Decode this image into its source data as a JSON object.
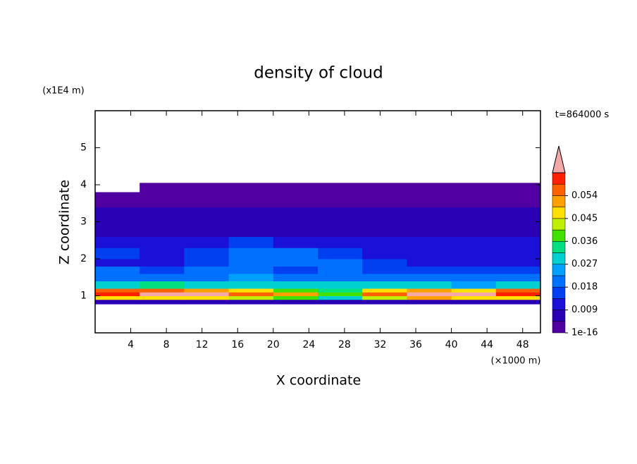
{
  "chart_data": {
    "type": "contour",
    "title": "density of cloud",
    "xlabel": "X coordinate",
    "ylabel": "Z coordinate",
    "x_unit": "(×1000 m)",
    "y_unit": "(x1E4 m)",
    "annotation": "t=864000 s",
    "xlim": [
      0,
      50
    ],
    "xticks": [
      4,
      8,
      12,
      16,
      20,
      24,
      28,
      32,
      36,
      40,
      44,
      48
    ],
    "ylim": [
      0,
      6
    ],
    "yticks": [
      1,
      2,
      3,
      4,
      5
    ],
    "x_edges": [
      0,
      5,
      10,
      15,
      20,
      25,
      30,
      35,
      40,
      45,
      50
    ],
    "y_edges": [
      0.78,
      0.9,
      1.0,
      1.1,
      1.2,
      1.4,
      1.6,
      1.8,
      2.0,
      2.3,
      2.6,
      3.0,
      3.4,
      3.8,
      4.05
    ],
    "z": [
      [
        0.008,
        0.008,
        0.008,
        0.008,
        0.008,
        0.007,
        0.008,
        0.008,
        0.008,
        0.008
      ],
      [
        0.045,
        0.048,
        0.046,
        0.044,
        0.04,
        0.03,
        0.044,
        0.05,
        0.048,
        0.046
      ],
      [
        0.062,
        0.066,
        0.064,
        0.058,
        0.05,
        0.04,
        0.058,
        0.066,
        0.066,
        0.06
      ],
      [
        0.055,
        0.058,
        0.05,
        0.045,
        0.04,
        0.035,
        0.045,
        0.05,
        0.045,
        0.056
      ],
      [
        0.03,
        0.032,
        0.03,
        0.028,
        0.028,
        0.03,
        0.03,
        0.028,
        0.025,
        0.03
      ],
      [
        0.02,
        0.022,
        0.02,
        0.024,
        0.02,
        0.022,
        0.02,
        0.02,
        0.018,
        0.02
      ],
      [
        0.018,
        0.016,
        0.02,
        0.018,
        0.016,
        0.018,
        0.016,
        0.015,
        0.014,
        0.016
      ],
      [
        0.012,
        0.012,
        0.016,
        0.02,
        0.022,
        0.018,
        0.014,
        0.012,
        0.012,
        0.012
      ],
      [
        0.014,
        0.012,
        0.016,
        0.018,
        0.018,
        0.014,
        0.012,
        0.012,
        0.01,
        0.012
      ],
      [
        0.01,
        0.012,
        0.012,
        0.014,
        0.012,
        0.012,
        0.01,
        0.01,
        0.01,
        0.01
      ],
      [
        0.007,
        0.007,
        0.007,
        0.007,
        0.007,
        0.007,
        0.007,
        0.007,
        0.007,
        0.007
      ],
      [
        0.005,
        0.005,
        0.005,
        0.005,
        0.005,
        0.005,
        0.005,
        0.005,
        0.005,
        0.005
      ],
      [
        0.003,
        0.003,
        0.003,
        0.003,
        0.003,
        0.003,
        0.003,
        0.003,
        0.003,
        0.003
      ],
      [
        null,
        0.002,
        0.002,
        0.002,
        0.002,
        0.002,
        0.002,
        0.002,
        0.002,
        0.002
      ]
    ],
    "levels": [
      1e-16,
      0.0045,
      0.009,
      0.0135,
      0.018,
      0.0225,
      0.027,
      0.0315,
      0.036,
      0.0405,
      0.045,
      0.0495,
      0.054,
      0.0585,
      0.063
    ],
    "colors": [
      "#5000a0",
      "#2a00b4",
      "#1a10d8",
      "#0040f0",
      "#0070ff",
      "#00a0ff",
      "#00d0d0",
      "#00e080",
      "#40e000",
      "#c0f000",
      "#ffe000",
      "#ffa000",
      "#ff6000",
      "#ff2000"
    ],
    "extend_color": "#f4a8a8",
    "colorbar_ticks": [
      {
        "value": 1e-16,
        "label": "1e-16"
      },
      0.009,
      0.018,
      0.027,
      0.036,
      0.045,
      0.054
    ]
  }
}
